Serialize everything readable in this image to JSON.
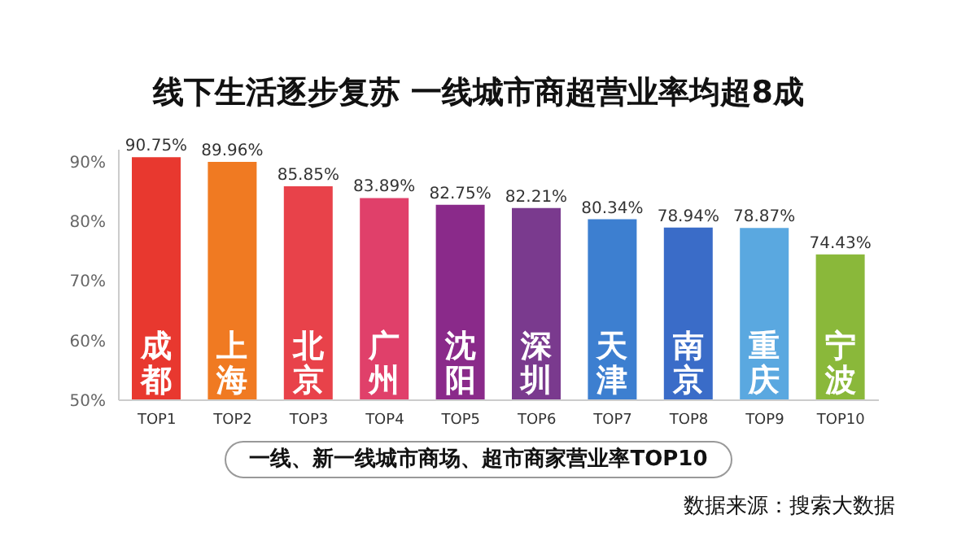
{
  "chart_data": {
    "type": "bar",
    "title": "线下生活逐步复苏 一线城市商超营业率均超8成",
    "subtitle": "一线、新一线城市商场、超市商家营业率TOP10",
    "categories": [
      "TOP1",
      "TOP2",
      "TOP3",
      "TOP4",
      "TOP5",
      "TOP6",
      "TOP7",
      "TOP8",
      "TOP9",
      "TOP10"
    ],
    "values": [
      90.75,
      89.96,
      85.85,
      83.89,
      82.75,
      82.21,
      80.34,
      78.94,
      78.87,
      74.43
    ],
    "value_labels": [
      "90.75%",
      "89.96%",
      "85.85%",
      "83.89%",
      "82.75%",
      "82.21%",
      "80.34%",
      "78.94%",
      "78.87%",
      "74.43%"
    ],
    "colors": [
      "#e8382f",
      "#f07a22",
      "#e8424a",
      "#e0406a",
      "#8a2a8a",
      "#7a3a8e",
      "#3d7fd0",
      "#3a6cc8",
      "#5aa8e0",
      "#8ab83a"
    ],
    "ylim": [
      50,
      92
    ],
    "yticks": [
      {
        "value": 50,
        "label": "50%"
      },
      {
        "value": 60,
        "label": "60%"
      },
      {
        "value": 70,
        "label": "70%"
      },
      {
        "value": 80,
        "label": "80%"
      },
      {
        "value": 90,
        "label": "90%"
      }
    ],
    "grid": false,
    "annotations": [
      "成都",
      "上海",
      "北京",
      "广州",
      "沈阳",
      "深圳",
      "天津",
      "南京",
      "重庆",
      "宁波",
      "数据来源：搜索大数据"
    ]
  }
}
